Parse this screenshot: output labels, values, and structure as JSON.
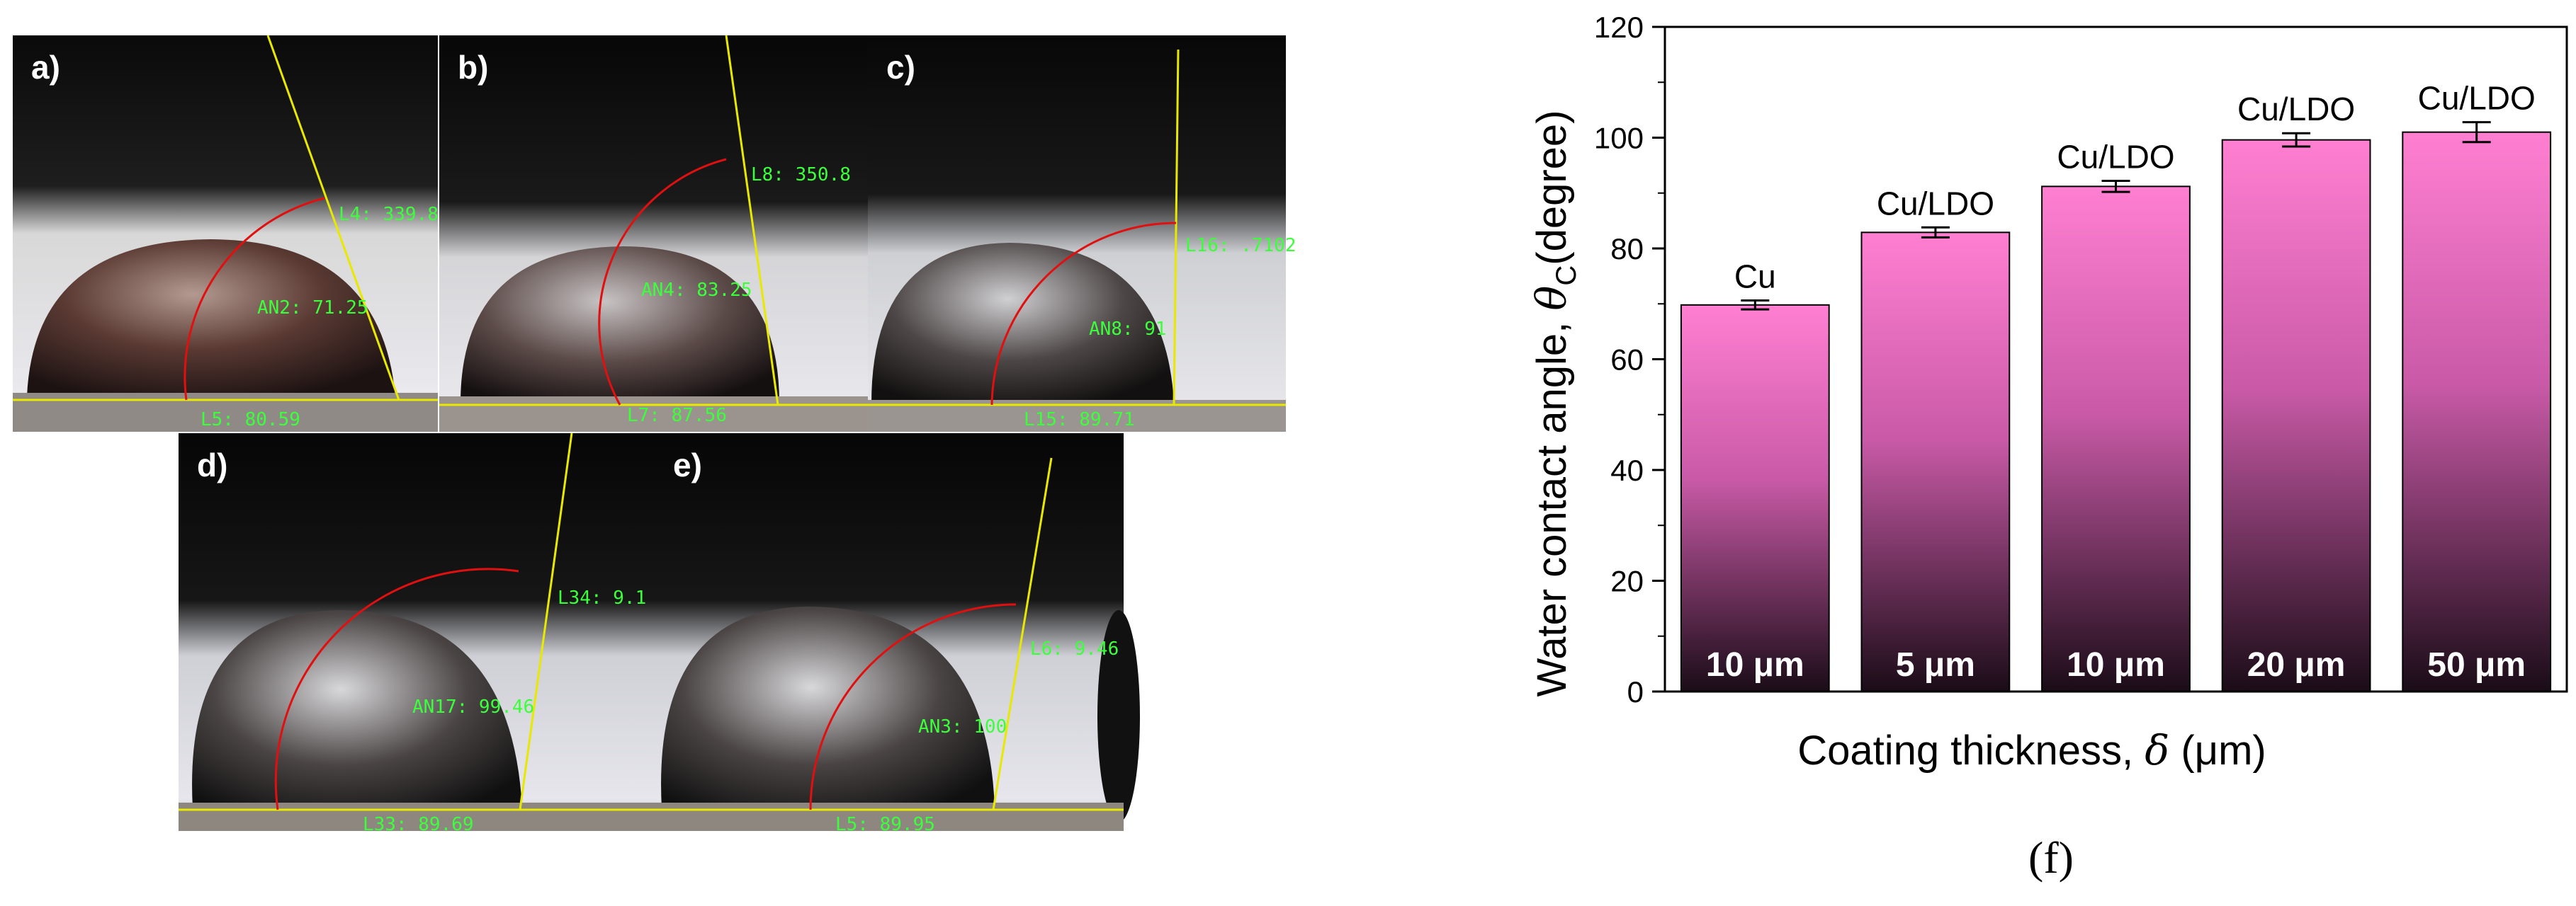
{
  "photo_panels": [
    {
      "label": "a)",
      "measurements": [
        "L4: 339.8",
        "AN2: 71.25",
        "L5: 80.59"
      ]
    },
    {
      "label": "b)",
      "measurements": [
        "L8: 350.8",
        "AN4: 83.25",
        "L7: 87.56"
      ]
    },
    {
      "label": "c)",
      "measurements": [
        "L16: .7102",
        "AN8: 91",
        "L15: 89.71"
      ]
    },
    {
      "label": "d)",
      "measurements": [
        "L34: 9.1",
        "AN17: 99.46",
        "L33: 89.69"
      ]
    },
    {
      "label": "e)",
      "measurements": [
        "L6: 9.46",
        "AN3: 100",
        "L5: 89.95"
      ]
    }
  ],
  "figure_label": "(f)",
  "colors": {
    "bar_top": "#ff7fd1",
    "bar_mid": "#c95aa7",
    "bar_bottom": "#1a0c17",
    "measure_text": "#3cff3c",
    "tangent_line": "#e8e800",
    "arc_line": "#e01010"
  },
  "chart_data": {
    "type": "bar",
    "categories": [
      "10 μm",
      "5 μm",
      "10 μm",
      "20 μm",
      "50 μm"
    ],
    "bar_top_labels": [
      "Cu",
      "Cu/LDO",
      "Cu/LDO",
      "Cu/LDO",
      "Cu/LDO"
    ],
    "values": [
      69.8,
      82.9,
      91.2,
      99.6,
      101
    ],
    "errors": [
      0.8,
      0.9,
      1.0,
      1.2,
      1.8
    ],
    "ylim": [
      0,
      120
    ],
    "yticks": [
      0,
      20,
      40,
      60,
      80,
      100,
      120
    ],
    "ylabel_prefix": "Water contact angle,",
    "ylabel_symbol": "θ",
    "ylabel_subscript": "C",
    "ylabel_unit": "(degree)",
    "xlabel_prefix": "Coating thickness,",
    "xlabel_symbol": "δ",
    "xlabel_unit": "μm",
    "grid": false
  }
}
